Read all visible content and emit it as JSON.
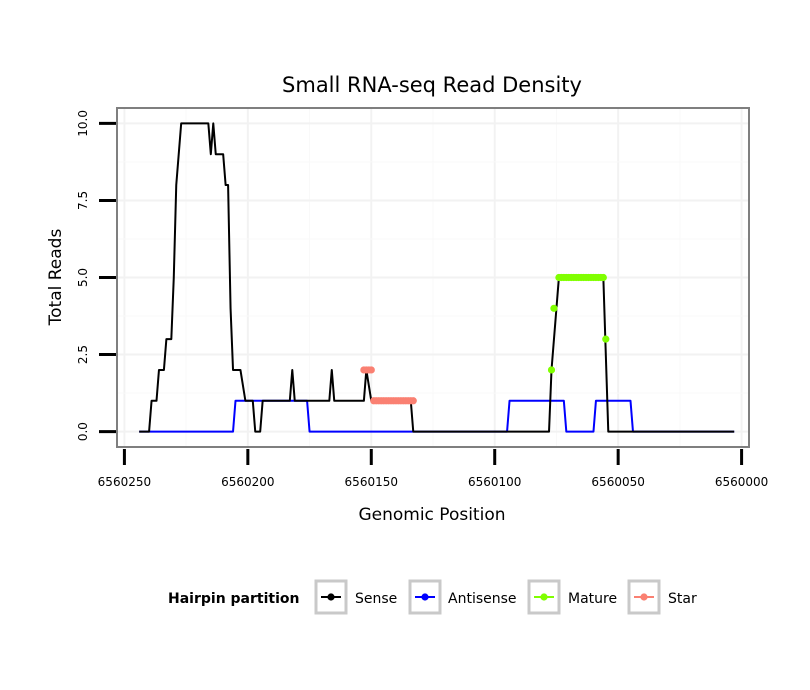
{
  "chart_data": {
    "type": "line",
    "title": "Small RNA-seq Read Density",
    "xlabel": "Genomic Position",
    "ylabel": "Total Reads",
    "xlim": [
      6560253,
      6559997
    ],
    "ylim": [
      -0.5,
      10.5
    ],
    "x_reversed": true,
    "grid": true,
    "x_ticks": [
      6560250,
      6560200,
      6560150,
      6560100,
      6560050,
      6560000
    ],
    "x_tick_labels": [
      "6560250",
      "6560200",
      "6560150",
      "6560100",
      "6560050",
      "6560000"
    ],
    "y_ticks": [
      0,
      2.5,
      5,
      7.5,
      10
    ],
    "y_tick_labels": [
      "0.0",
      "2.5",
      "5.0",
      "7.5",
      "10.0"
    ],
    "legend": {
      "title": "Hairpin partition",
      "placement": "bottom",
      "entries": [
        "Sense",
        "Antisense",
        "Mature",
        "Star"
      ]
    },
    "series": [
      {
        "name": "Sense",
        "color": "#000000",
        "style": "line",
        "x": [
          6560244,
          6560240,
          6560239,
          6560237,
          6560236,
          6560234,
          6560233,
          6560231,
          6560230,
          6560229,
          6560228,
          6560227,
          6560226,
          6560225,
          6560224,
          6560223,
          6560222,
          6560218,
          6560216,
          6560215,
          6560214,
          6560213,
          6560212,
          6560211,
          6560210,
          6560209,
          6560208,
          6560207,
          6560206,
          6560205,
          6560204,
          6560203,
          6560201,
          6560200,
          6560198,
          6560197,
          6560195,
          6560194,
          6560192,
          6560185,
          6560184,
          6560183,
          6560182,
          6560181,
          6560180,
          6560179,
          6560167,
          6560166,
          6560165,
          6560164,
          6560153,
          6560152,
          6560150,
          6560148,
          6560147,
          6560146,
          6560145,
          6560137,
          6560136,
          6560135,
          6560134,
          6560133,
          6560130,
          6560100,
          6560081,
          6560078,
          6560077,
          6560075,
          6560074,
          6560073,
          6560057,
          6560056,
          6560054,
          6560003
        ],
        "y": [
          0,
          0,
          1,
          1,
          2,
          2,
          3,
          3,
          5,
          8,
          9,
          10,
          10,
          10,
          10,
          10,
          10,
          10,
          10,
          9,
          10,
          9,
          9,
          9,
          9,
          8,
          8,
          4,
          2,
          2,
          2,
          2,
          1,
          1,
          1,
          0,
          0,
          1,
          1,
          1,
          1,
          1,
          2,
          1,
          1,
          1,
          1,
          2,
          1,
          1,
          1,
          2,
          1,
          1,
          1,
          1,
          1,
          1,
          1,
          1,
          1,
          0,
          0,
          0,
          0,
          0,
          2,
          4,
          5,
          5,
          5,
          5,
          0,
          0
        ]
      },
      {
        "name": "Antisense",
        "color": "#0000ff",
        "style": "line",
        "x": [
          6560244,
          6560206,
          6560205,
          6560190,
          6560189,
          6560176,
          6560175,
          6560095,
          6560094,
          6560087,
          6560086,
          6560072,
          6560071,
          6560064,
          6560063,
          6560060,
          6560059,
          6560056,
          6560055,
          6560045,
          6560044,
          6560003
        ],
        "y": [
          0,
          0,
          1,
          1,
          1,
          1,
          0,
          0,
          1,
          1,
          1,
          1,
          0,
          0,
          0,
          0,
          1,
          1,
          1,
          1,
          0,
          0
        ]
      },
      {
        "name": "Mature",
        "color": "#80ff00",
        "style": "points",
        "x": [
          6560077,
          6560076,
          6560074,
          6560073,
          6560072,
          6560071,
          6560070,
          6560069,
          6560068,
          6560067,
          6560066,
          6560065,
          6560064,
          6560063,
          6560062,
          6560061,
          6560060,
          6560059,
          6560058,
          6560057,
          6560056,
          6560055
        ],
        "y": [
          2,
          4,
          5,
          5,
          5,
          5,
          5,
          5,
          5,
          5,
          5,
          5,
          5,
          5,
          5,
          5,
          5,
          5,
          5,
          5,
          5,
          3
        ]
      },
      {
        "name": "Star",
        "color": "#fa8072",
        "style": "points",
        "x": [
          6560153,
          6560152,
          6560151,
          6560150,
          6560149,
          6560148,
          6560147,
          6560146,
          6560145,
          6560144,
          6560143,
          6560142,
          6560141,
          6560140,
          6560139,
          6560138,
          6560137,
          6560136,
          6560135,
          6560134,
          6560133
        ],
        "y": [
          2,
          2,
          2,
          2,
          1,
          1,
          1,
          1,
          1,
          1,
          1,
          1,
          1,
          1,
          1,
          1,
          1,
          1,
          1,
          1,
          1
        ]
      }
    ]
  }
}
